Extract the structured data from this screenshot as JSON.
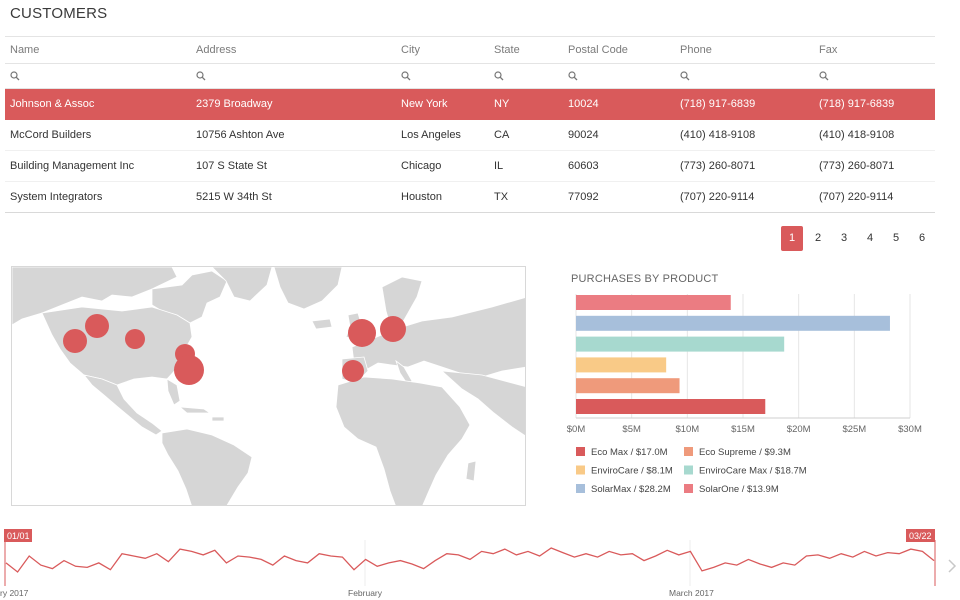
{
  "title": "CUSTOMERS",
  "grid": {
    "columns": [
      "Name",
      "Address",
      "City",
      "State",
      "Postal Code",
      "Phone",
      "Fax"
    ],
    "rows": [
      [
        "Johnson & Assoc",
        "2379 Broadway",
        "New York",
        "NY",
        "10024",
        "(718) 917-6839",
        "(718) 917-6839"
      ],
      [
        "McCord Builders",
        "10756 Ashton Ave",
        "Los Angeles",
        "CA",
        "90024",
        "(410) 418-9108",
        "(410) 418-9108"
      ],
      [
        "Building Management Inc",
        "107 S State St",
        "Chicago",
        "IL",
        "60603",
        "(773) 260-8071",
        "(773) 260-8071"
      ],
      [
        "System Integrators",
        "5215 W 34th St",
        "Houston",
        "TX",
        "77092",
        "(707) 220-9114",
        "(707) 220-9114"
      ]
    ],
    "selected_row": 0
  },
  "pager": {
    "pages": [
      "1",
      "2",
      "3",
      "4",
      "5",
      "6"
    ],
    "active": 0
  },
  "map_icons": [
    "map-marker-icon"
  ],
  "chart_data": [
    {
      "type": "bar",
      "orientation": "horizontal",
      "title": "PURCHASES BY PRODUCT",
      "categories": [
        "Eco Max",
        "Eco Supreme",
        "EnviroCare",
        "EnviroCare Max",
        "SolarMax",
        "SolarOne"
      ],
      "values": [
        17.0,
        9.3,
        8.1,
        18.7,
        28.2,
        13.9
      ],
      "unit": "$M",
      "xlim": [
        0,
        30
      ],
      "xticks": [
        "$0M",
        "$5M",
        "$10M",
        "$15M",
        "$20M",
        "$25M",
        "$30M"
      ],
      "legend": [
        "Eco Max / $17.0M",
        "Eco Supreme / $9.3M",
        "EnviroCare / $8.1M",
        "EnviroCare Max / $18.7M",
        "SolarMax / $28.2M",
        "SolarOne / $13.9M"
      ],
      "colors": [
        "#d95a5b",
        "#ef9a7b",
        "#f9ca87",
        "#a7d9cf",
        "#a7bfdb",
        "#eb7c82"
      ],
      "grid": true,
      "legend_position": "bottom"
    },
    {
      "type": "line",
      "title": "",
      "x_labels": [
        "ry 2017",
        "February",
        "March 2017"
      ],
      "range_start_label": "01/01",
      "range_end_label": "03/22",
      "values": [
        50,
        42,
        56,
        48,
        45,
        52,
        47,
        46,
        50,
        44,
        58,
        56,
        54,
        58,
        51,
        62,
        60,
        57,
        61,
        50,
        56,
        55,
        53,
        48,
        56,
        52,
        50,
        58,
        56,
        55,
        44,
        53,
        47,
        50,
        52,
        49,
        45,
        52,
        58,
        57,
        53,
        60,
        58,
        62,
        57,
        60,
        56,
        63,
        59,
        55,
        58,
        55,
        60,
        57,
        58,
        52,
        56,
        61,
        57,
        60,
        43,
        46,
        50,
        48,
        53,
        49,
        46,
        50,
        48,
        56,
        57,
        54,
        58,
        55,
        60,
        56,
        59,
        58,
        62,
        60,
        52
      ],
      "color": "#d95a5b"
    }
  ]
}
